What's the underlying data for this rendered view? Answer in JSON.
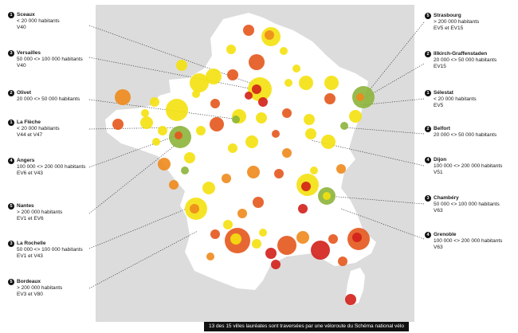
{
  "caption": "13 des 15 villes lauréates sont traversées par une véloroute du Schéma national vélo",
  "colors": {
    "background": "#dcdcdc",
    "land": "#ffffff",
    "yellow": "#f4e10e",
    "orange": "#ee8a1c",
    "dark_orange": "#e4571c",
    "red": "#d21f1a",
    "green": "#8cb43a",
    "leader_line": "#333333",
    "badge": "#111111"
  },
  "left_cities": [
    {
      "num": "1",
      "name": "Sceaux",
      "size": "< 20 000 habitants",
      "route": "V40"
    },
    {
      "num": "3",
      "name": "Versailles",
      "size": "50 000 <> 100 000 habitants",
      "route": "V40"
    },
    {
      "num": "2",
      "name": "Olivet",
      "size": "20 000 <> 50 000 habitants",
      "route": ""
    },
    {
      "num": "1",
      "name": "La Flèche",
      "size": "< 20 000 habitants",
      "route": "V44 et V47"
    },
    {
      "num": "4",
      "name": "Angers",
      "size": "100 000 <> 200 000 habitants",
      "route": "EV6 et V43"
    },
    {
      "num": "5",
      "name": "Nantes",
      "size": "> 200 000 habitants",
      "route": "EV1 et EV6"
    },
    {
      "num": "3",
      "name": "La Rochelle",
      "size": "50 000 <> 100 000 habitants",
      "route": "EV1 et V43"
    },
    {
      "num": "5",
      "name": "Bordeaux",
      "size": "> 200 000 habitants",
      "route": "EV3 et V80"
    }
  ],
  "right_cities": [
    {
      "num": "5",
      "name": "Strasbourg",
      "size": "> 200 000 habitants",
      "route": "EV5 et EV15"
    },
    {
      "num": "2",
      "name": "Illkirch-Graffenstaden",
      "size": "20 000 <> 50 000 habitants",
      "route": "EV15"
    },
    {
      "num": "1",
      "name": "Sélestat",
      "size": "< 20 000 habitants",
      "route": "EV5"
    },
    {
      "num": "2",
      "name": "Belfort",
      "size": "20 000 <> 50 000 habitants",
      "route": ""
    },
    {
      "num": "4",
      "name": "Dijon",
      "size": "100 000 <> 200 000 habitants",
      "route": "V51"
    },
    {
      "num": "3",
      "name": "Chambéry",
      "size": "50 000 <> 100 000 habitants",
      "route": "V63"
    },
    {
      "num": "4",
      "name": "Grenoble",
      "size": "100 000 <> 200 000 habitants",
      "route": "V63"
    }
  ]
}
